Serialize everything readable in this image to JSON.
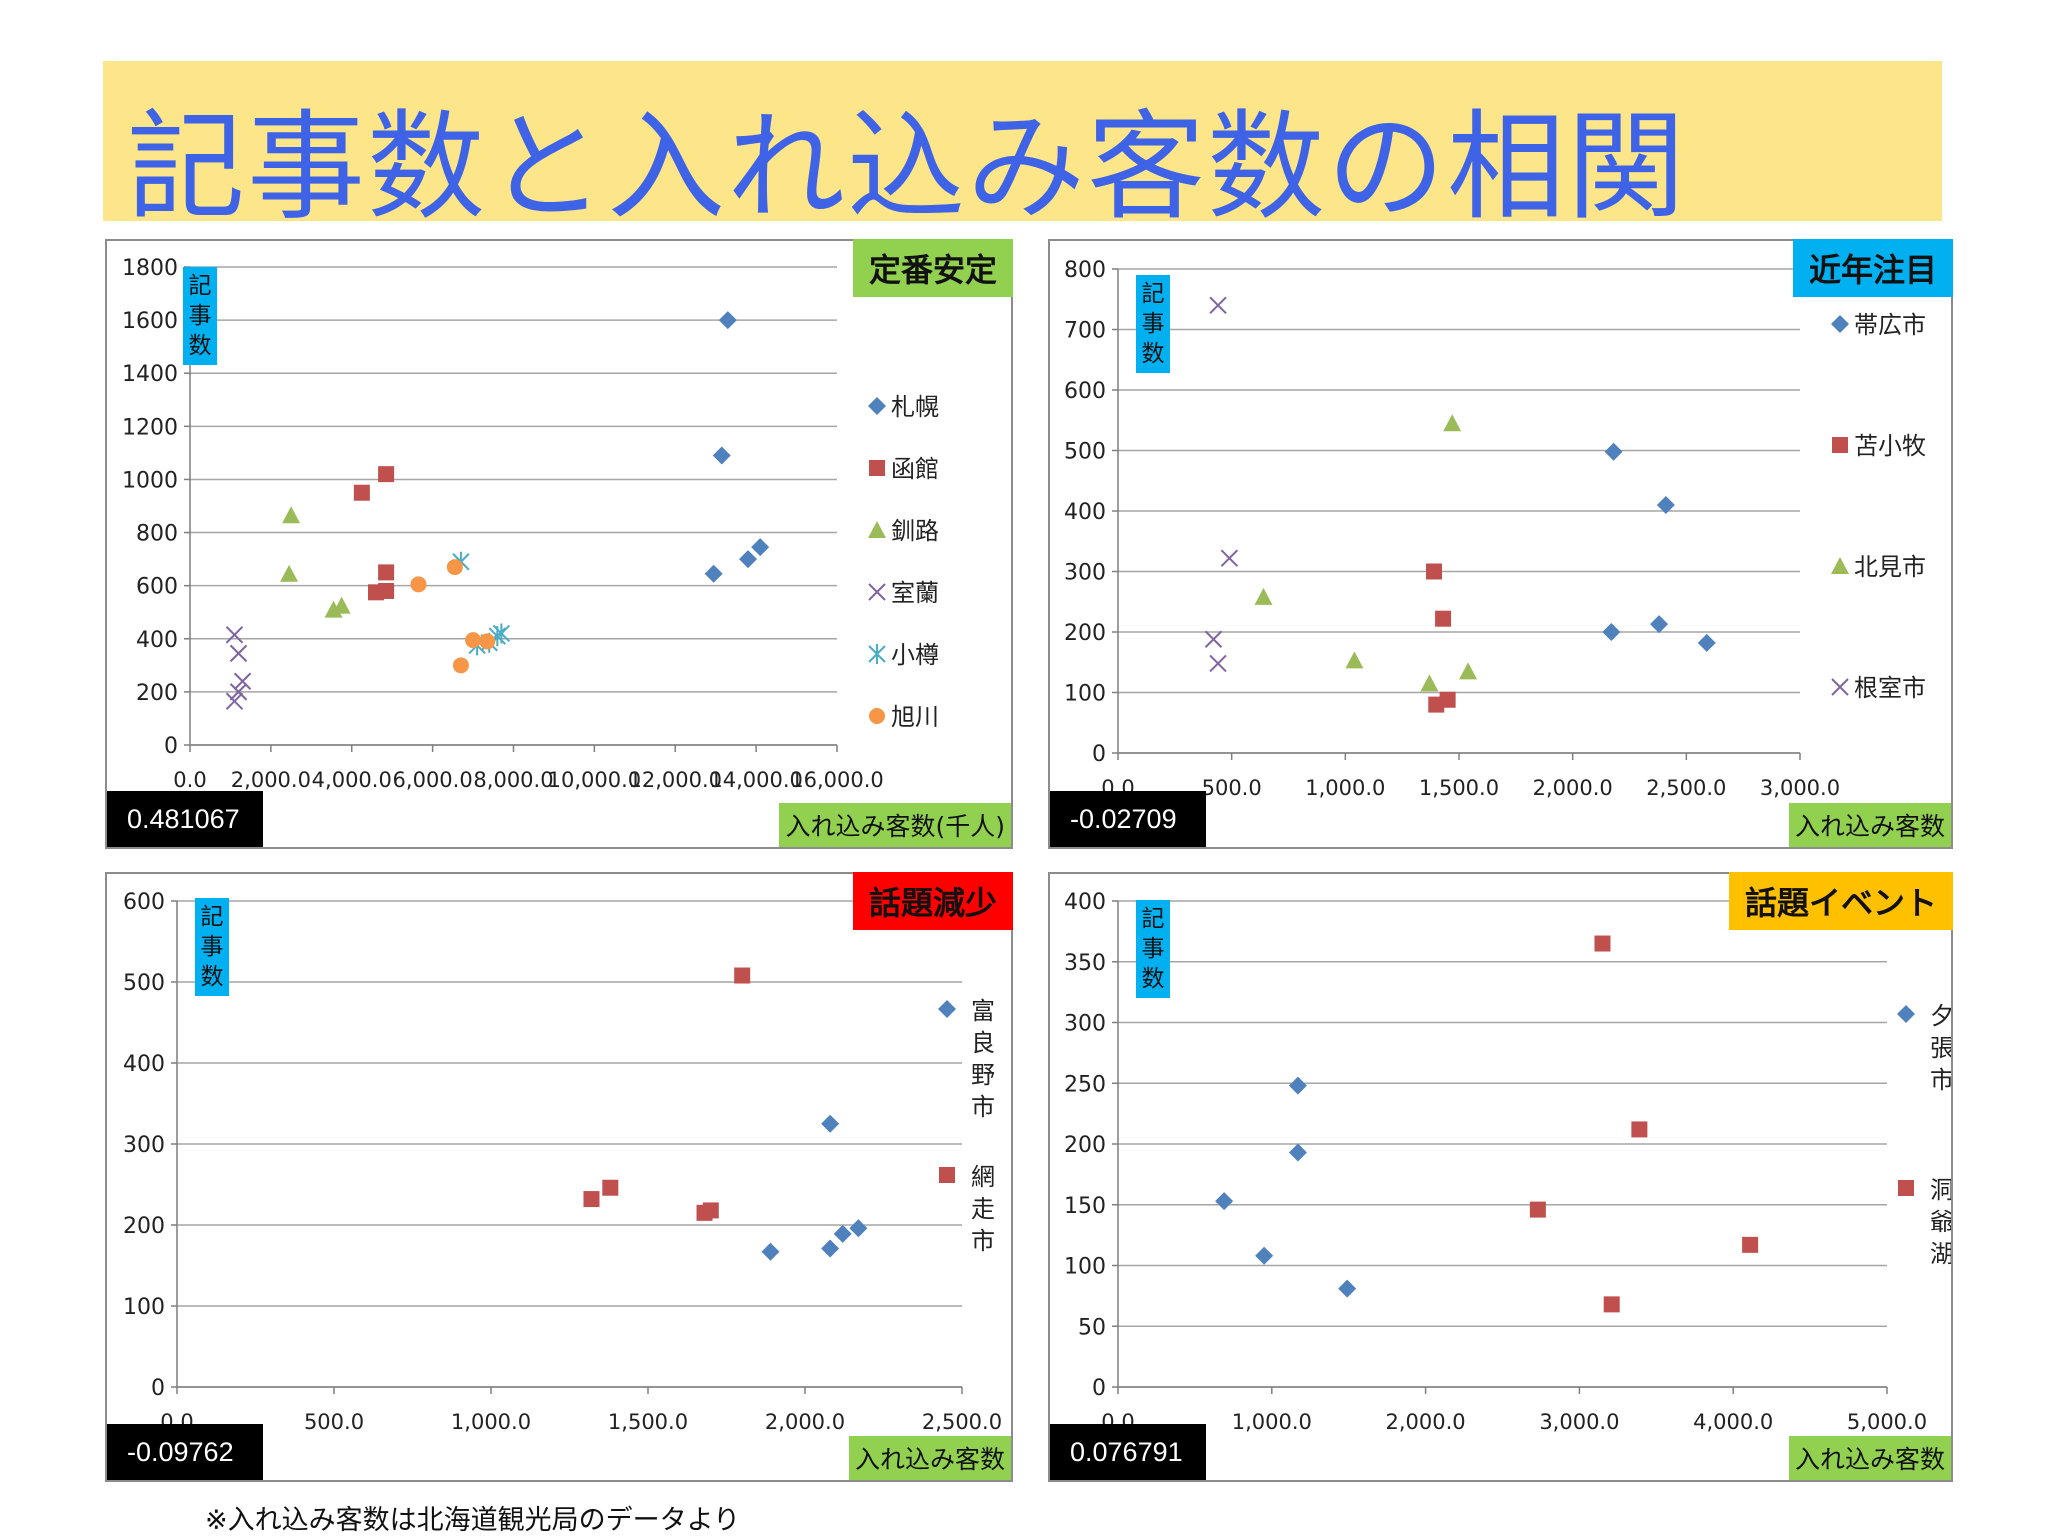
{
  "title": "記事数と入れ込み客数の相関",
  "footnote": "※入れ込み客数は北海道観光局のデータより",
  "colors": {
    "title_band": "#fde58a",
    "title_text": "#3f63e6",
    "xlabel_bg": "#92d050",
    "ylabel_bg": "#00b0f0",
    "series_blue": "#4f81bd",
    "series_red": "#c0504d",
    "series_green": "#9bbb59",
    "series_purple": "#8064a2",
    "series_cyan": "#4bacc6",
    "series_orange": "#f79646"
  },
  "chart_data": [
    {
      "type": "scatter",
      "tag": "定番安定",
      "tag_color": "#92d050",
      "correlation": "0.481067",
      "ylabel": "記事数",
      "xlabel": "入れ込み客数(千人)",
      "xlim": [
        0,
        16000
      ],
      "ylim": [
        0,
        1800
      ],
      "xticks": [
        0,
        2000,
        4000,
        6000,
        8000,
        10000,
        12000,
        14000,
        16000
      ],
      "xtick_labels": [
        "0.0",
        "2,000.0",
        "4,000.0",
        "6,000.0",
        "8,000.0",
        "10,000.0",
        "12,000.0",
        "14,000.0",
        "16,000.0"
      ],
      "yticks": [
        0,
        200,
        400,
        600,
        800,
        1000,
        1200,
        1400,
        1600,
        1800
      ],
      "ytick_labels": [
        "0",
        "200",
        "400",
        "600",
        "800",
        "1000",
        "1200",
        "1400",
        "1600",
        "1800"
      ],
      "legend_position": "right",
      "series": [
        {
          "name": "札幌",
          "marker": "diamond",
          "color": "#4f81bd",
          "points": [
            [
              13300,
              1600
            ],
            [
              13150,
              1090
            ],
            [
              12950,
              645
            ],
            [
              13800,
              700
            ],
            [
              14100,
              745
            ]
          ]
        },
        {
          "name": "函館",
          "marker": "square",
          "color": "#c0504d",
          "points": [
            [
              4250,
              950
            ],
            [
              4850,
              1020
            ],
            [
              4600,
              575
            ],
            [
              4850,
              580
            ],
            [
              4850,
              650
            ]
          ]
        },
        {
          "name": "釧路",
          "marker": "triangle",
          "color": "#9bbb59",
          "points": [
            [
              2500,
              865
            ],
            [
              2450,
              645
            ],
            [
              3550,
              510
            ],
            [
              3750,
              525
            ]
          ]
        },
        {
          "name": "室蘭",
          "marker": "x",
          "color": "#8064a2",
          "points": [
            [
              1100,
              415
            ],
            [
              1200,
              345
            ],
            [
              1300,
              240
            ],
            [
              1200,
              200
            ],
            [
              1100,
              165
            ]
          ]
        },
        {
          "name": "小樽",
          "marker": "star",
          "color": "#4bacc6",
          "points": [
            [
              6700,
              690
            ],
            [
              7100,
              375
            ],
            [
              7400,
              385
            ],
            [
              7700,
              420
            ],
            [
              7600,
              410
            ]
          ]
        },
        {
          "name": "旭川",
          "marker": "circle",
          "color": "#f79646",
          "points": [
            [
              5650,
              605
            ],
            [
              6550,
              670
            ],
            [
              7000,
              395
            ],
            [
              7350,
              390
            ],
            [
              6700,
              300
            ]
          ]
        }
      ]
    },
    {
      "type": "scatter",
      "tag": "近年注目",
      "tag_color": "#00b0f0",
      "correlation": "-0.02709",
      "ylabel": "記事数",
      "xlabel": "入れ込み客数",
      "xlim": [
        0,
        3000
      ],
      "ylim": [
        0,
        800
      ],
      "xticks": [
        0,
        500,
        1000,
        1500,
        2000,
        2500,
        3000
      ],
      "xtick_labels": [
        "0.0",
        "500.0",
        "1,000.0",
        "1,500.0",
        "2,000.0",
        "2,500.0",
        "3,000.0"
      ],
      "yticks": [
        0,
        100,
        200,
        300,
        400,
        500,
        600,
        700,
        800
      ],
      "ytick_labels": [
        "0",
        "100",
        "200",
        "300",
        "400",
        "500",
        "600",
        "700",
        "800"
      ],
      "legend_position": "right",
      "series": [
        {
          "name": "帯広市",
          "marker": "diamond",
          "color": "#4f81bd",
          "points": [
            [
              2180,
              498
            ],
            [
              2410,
              410
            ],
            [
              2170,
              200
            ],
            [
              2380,
              213
            ],
            [
              2590,
              182
            ]
          ]
        },
        {
          "name": "苫小牧",
          "marker": "square",
          "color": "#c0504d",
          "points": [
            [
              1390,
              300
            ],
            [
              1430,
              222
            ],
            [
              1400,
              80
            ],
            [
              1450,
              88
            ]
          ]
        },
        {
          "name": "北見市",
          "marker": "triangle",
          "color": "#9bbb59",
          "points": [
            [
              1470,
              545
            ],
            [
              640,
              258
            ],
            [
              1040,
              153
            ],
            [
              1370,
              115
            ],
            [
              1540,
              135
            ]
          ]
        },
        {
          "name": "根室市",
          "marker": "x",
          "color": "#8064a2",
          "points": [
            [
              440,
              740
            ],
            [
              490,
              322
            ],
            [
              420,
              188
            ],
            [
              440,
              148
            ]
          ]
        }
      ]
    },
    {
      "type": "scatter",
      "tag": "話題減少",
      "tag_color": "#ff0000",
      "correlation": "-0.09762",
      "ylabel": "記事数",
      "xlabel": "入れ込み客数",
      "xlim": [
        0,
        2500
      ],
      "ylim": [
        0,
        600
      ],
      "xticks": [
        0,
        500,
        1000,
        1500,
        2000,
        2500
      ],
      "xtick_labels": [
        "0.0",
        "500.0",
        "1,000.0",
        "1,500.0",
        "2,000.0",
        "2,500.0"
      ],
      "yticks": [
        0,
        100,
        200,
        300,
        400,
        500,
        600
      ],
      "ytick_labels": [
        "0",
        "100",
        "200",
        "300",
        "400",
        "500",
        "600"
      ],
      "legend_position": "right",
      "series": [
        {
          "name": "富良野市",
          "marker": "diamond",
          "color": "#4f81bd",
          "points": [
            [
              2080,
              325
            ],
            [
              1890,
              167
            ],
            [
              2080,
              171
            ],
            [
              2120,
              189
            ],
            [
              2170,
              196
            ]
          ]
        },
        {
          "name": "網走市",
          "marker": "square",
          "color": "#c0504d",
          "points": [
            [
              1800,
              508
            ],
            [
              1320,
              232
            ],
            [
              1380,
              246
            ],
            [
              1680,
              215
            ],
            [
              1700,
              218
            ]
          ]
        }
      ]
    },
    {
      "type": "scatter",
      "tag": "話題イベント",
      "tag_color": "#ffc000",
      "correlation": "0.076791",
      "ylabel": "記事数",
      "xlabel": "入れ込み客数",
      "xlim": [
        0,
        5000
      ],
      "ylim": [
        0,
        400
      ],
      "xticks": [
        0,
        1000,
        2000,
        3000,
        4000,
        5000
      ],
      "xtick_labels": [
        "0.0",
        "1,000.0",
        "2,000.0",
        "3,000.0",
        "4,000.0",
        "5,000.0"
      ],
      "yticks": [
        0,
        50,
        100,
        150,
        200,
        250,
        300,
        350,
        400
      ],
      "ytick_labels": [
        "0",
        "50",
        "100",
        "150",
        "200",
        "250",
        "300",
        "350",
        "400"
      ],
      "legend_position": "right",
      "series": [
        {
          "name": "夕張市",
          "marker": "diamond",
          "color": "#4f81bd",
          "points": [
            [
              1170,
              248
            ],
            [
              1170,
              193
            ],
            [
              690,
              153
            ],
            [
              950,
              108
            ],
            [
              1490,
              81
            ]
          ]
        },
        {
          "name": "洞爺湖",
          "marker": "square",
          "color": "#c0504d",
          "points": [
            [
              3150,
              365
            ],
            [
              3390,
              212
            ],
            [
              2730,
              146
            ],
            [
              4110,
              117
            ],
            [
              3210,
              68
            ]
          ]
        }
      ]
    }
  ]
}
